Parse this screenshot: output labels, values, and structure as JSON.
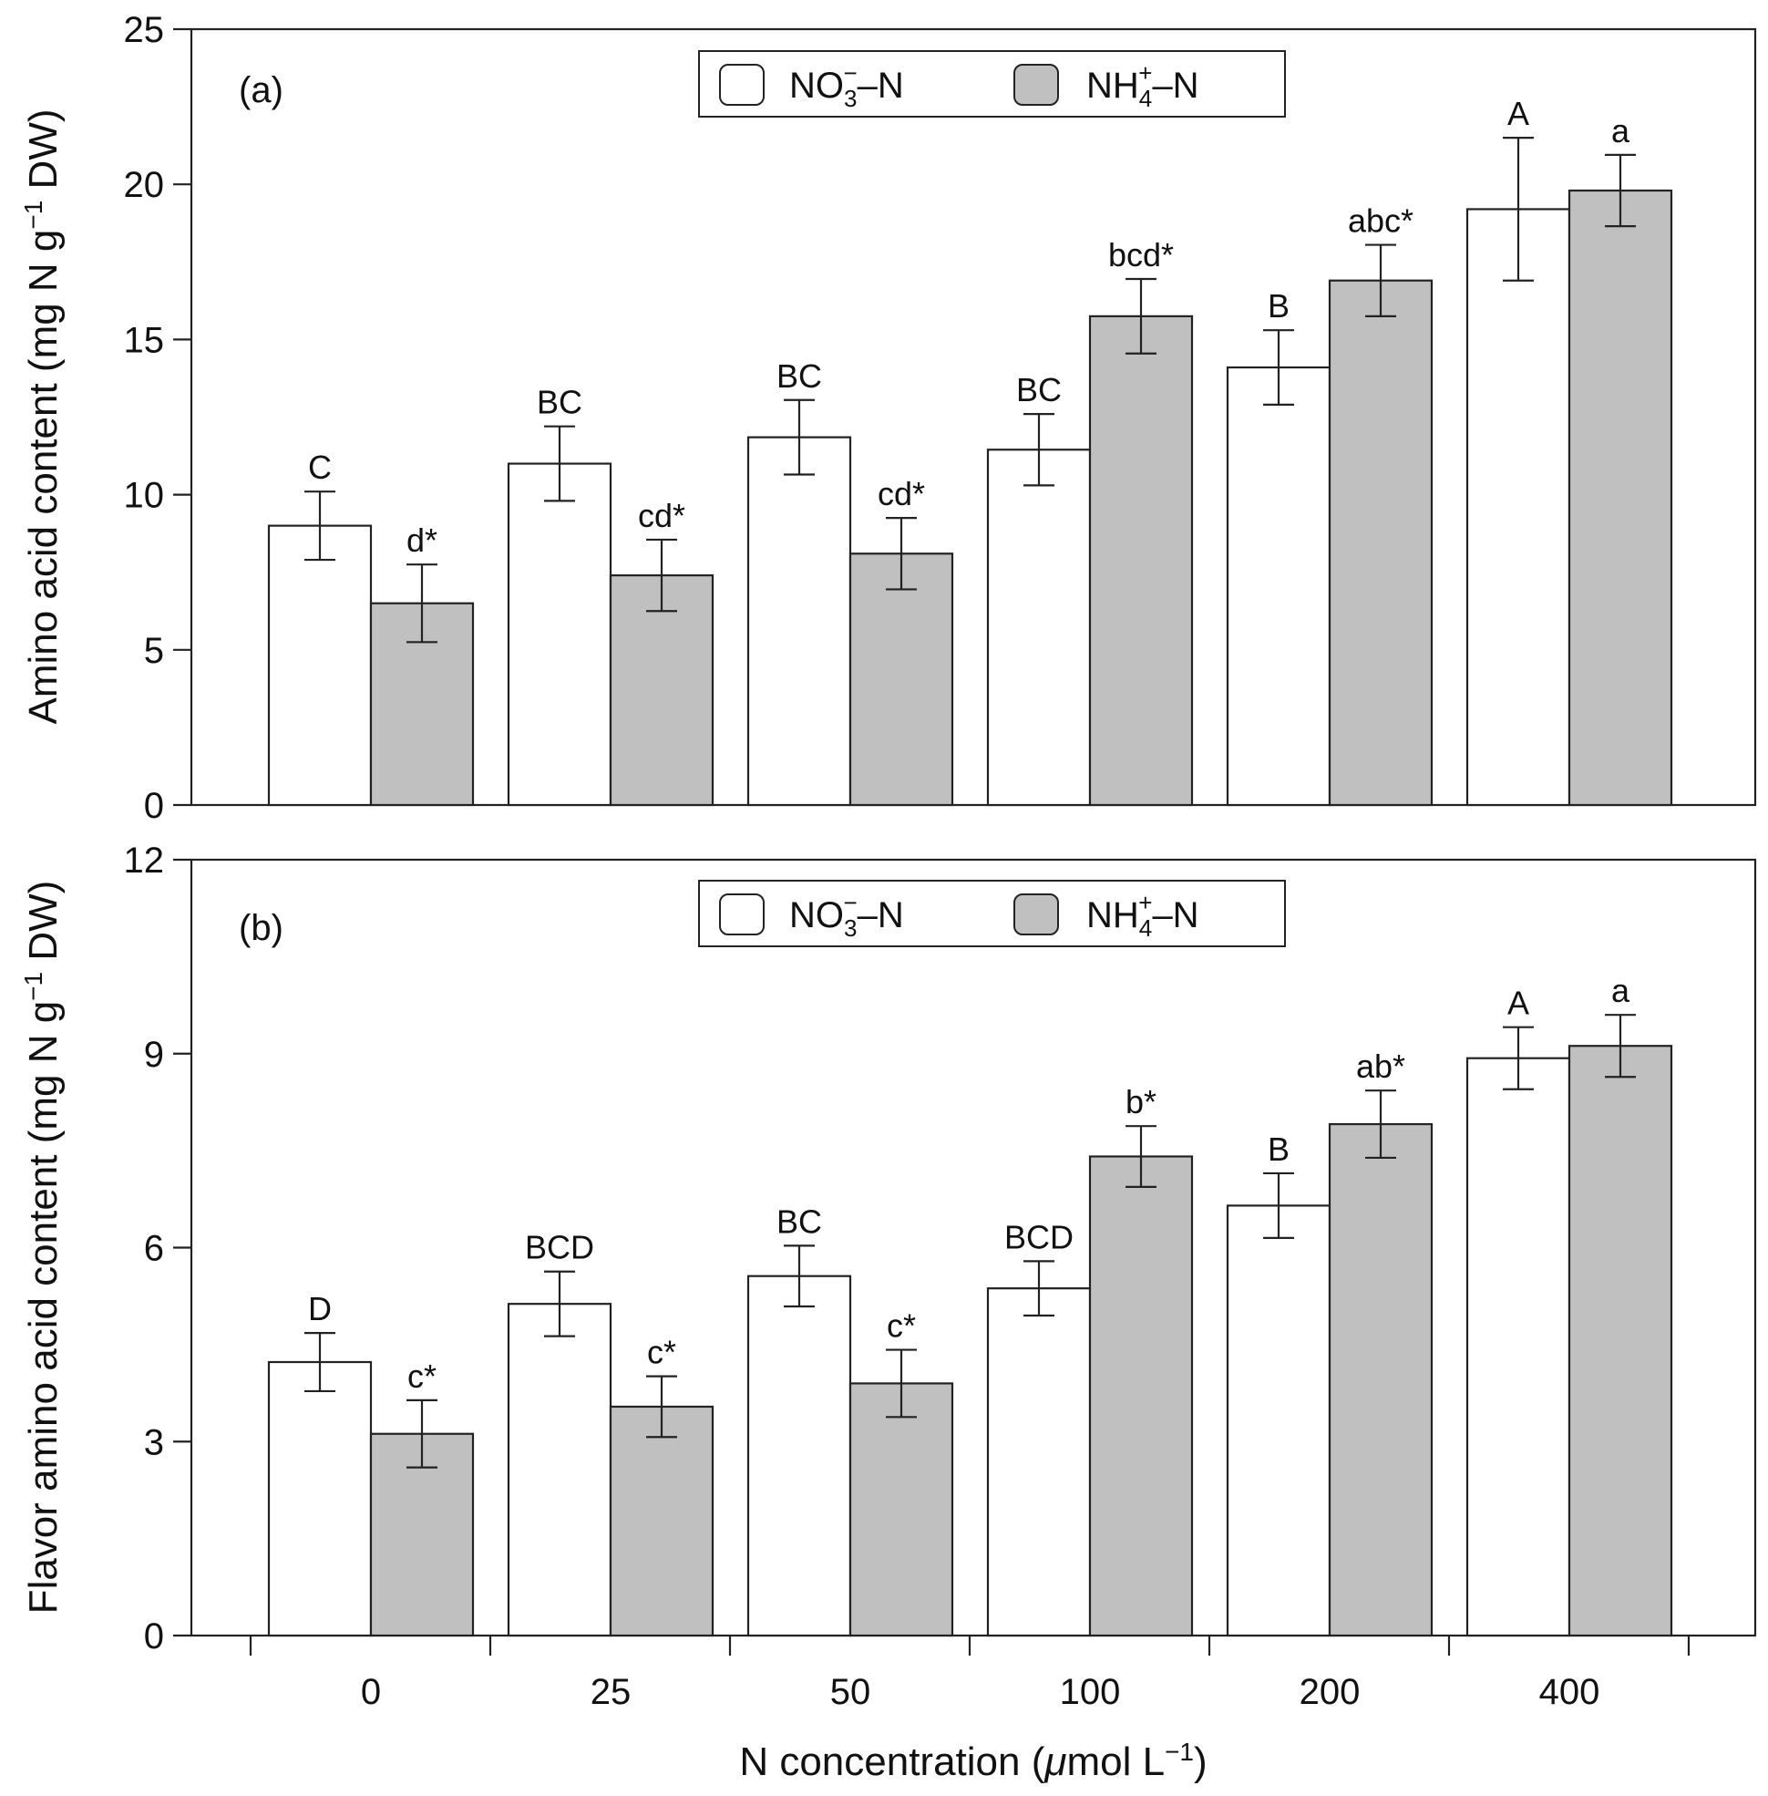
{
  "chart_data": [
    {
      "type": "bar",
      "panel_label": "(a)",
      "ylabel": "Amino acid content (mg N g⁻¹ DW)",
      "ylim": [
        0,
        25
      ],
      "yticks": [
        0,
        5,
        10,
        15,
        20,
        25
      ],
      "categories": [
        "0",
        "25",
        "50",
        "100",
        "200",
        "400"
      ],
      "series": [
        {
          "name": "NO₃⁻–N",
          "color": "#ffffff",
          "values": [
            9.0,
            11.0,
            11.85,
            11.45,
            14.1,
            19.2
          ],
          "errors": [
            1.1,
            1.2,
            1.2,
            1.15,
            1.2,
            2.3
          ],
          "labels": [
            "C",
            "BC",
            "BC",
            "BC",
            "B",
            "A"
          ]
        },
        {
          "name": "NH₄⁺–N",
          "color": "#c0c0c0",
          "values": [
            6.5,
            7.4,
            8.1,
            15.75,
            16.9,
            19.8
          ],
          "errors": [
            1.25,
            1.15,
            1.15,
            1.2,
            1.15,
            1.15
          ],
          "labels": [
            "d*",
            "cd*",
            "cd*",
            "bcd*",
            "abc*",
            "a"
          ]
        }
      ]
    },
    {
      "type": "bar",
      "panel_label": "(b)",
      "ylabel": "Flavor amino acid content (mg N g⁻¹ DW)",
      "ylim": [
        0,
        12
      ],
      "yticks": [
        0,
        3,
        6,
        9,
        12
      ],
      "categories": [
        "0",
        "25",
        "50",
        "100",
        "200",
        "400"
      ],
      "xlabel": "N concentration (μmol L⁻¹)",
      "series": [
        {
          "name": "NO₃⁻–N",
          "color": "#ffffff",
          "values": [
            4.23,
            5.13,
            5.56,
            5.37,
            6.65,
            8.93
          ],
          "errors": [
            0.45,
            0.5,
            0.47,
            0.42,
            0.5,
            0.48
          ],
          "labels": [
            "D",
            "BCD",
            "BC",
            "BCD",
            "B",
            "A"
          ]
        },
        {
          "name": "NH₄⁺–N",
          "color": "#c0c0c0",
          "values": [
            3.12,
            3.54,
            3.9,
            7.41,
            7.91,
            9.12
          ],
          "errors": [
            0.52,
            0.47,
            0.52,
            0.47,
            0.52,
            0.48
          ],
          "labels": [
            "c*",
            "c*",
            "c*",
            "b*",
            "ab*",
            "a"
          ]
        }
      ]
    }
  ],
  "legend": {
    "item1": {
      "main": "NO",
      "sub": "3",
      "sup": "−",
      "suffix": "–N"
    },
    "item2": {
      "main": "NH",
      "sub": "4",
      "sup": "+",
      "suffix": "–N"
    }
  },
  "axis_text": {
    "ylabel_a": {
      "main": "Amino acid content (mg N g",
      "sup": "−1",
      "end": " DW)"
    },
    "ylabel_b": {
      "main": "Flavor amino acid content (mg N g",
      "sup": "−1",
      "end": " DW)"
    },
    "xlabel": {
      "main": "N concentration (",
      "mu": "μ",
      "mid": "mol L",
      "sup": "−1",
      "end": ")"
    }
  }
}
